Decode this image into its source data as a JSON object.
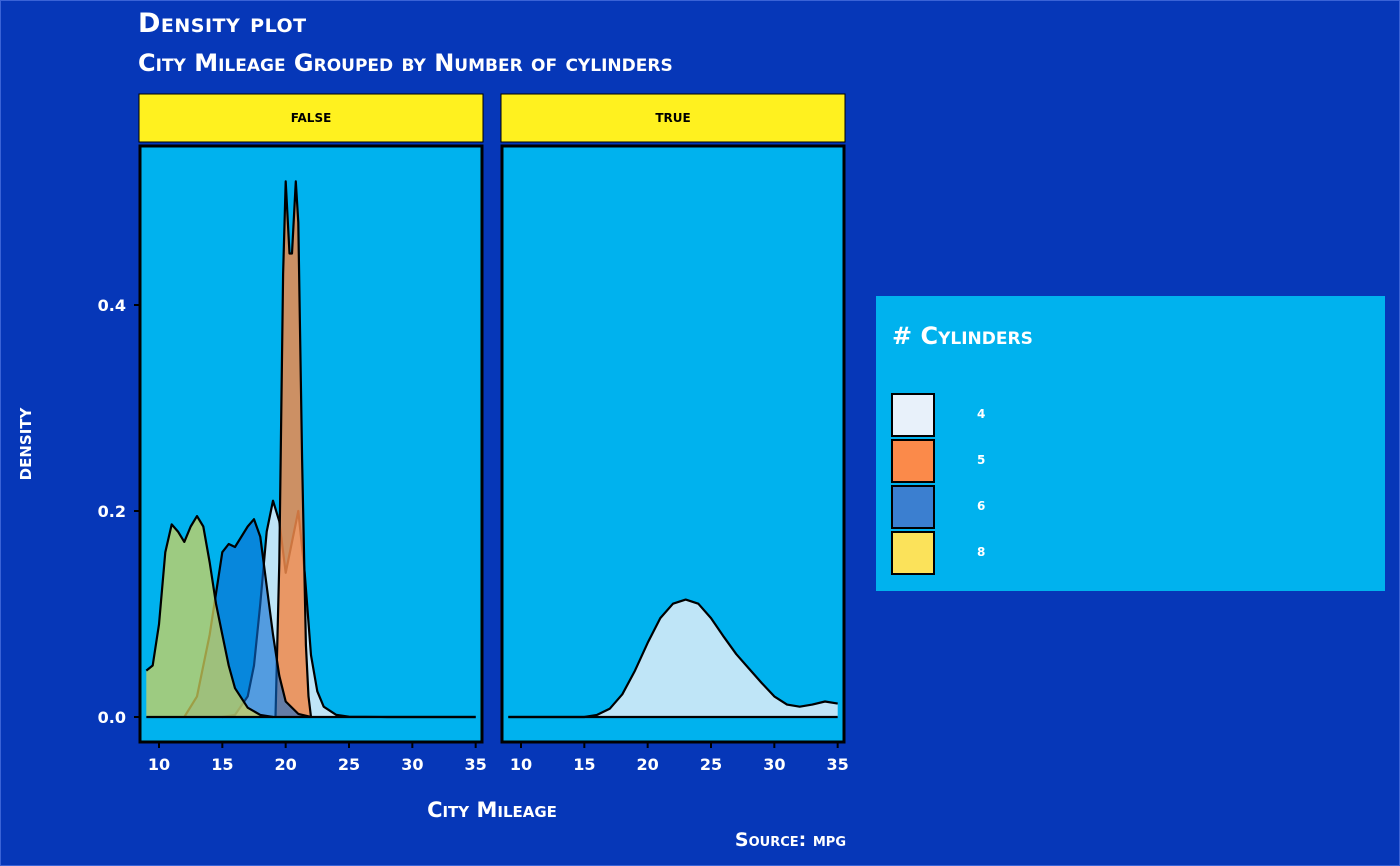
{
  "title": "Density plot",
  "subtitle": "City Mileage Grouped by Number of cylinders",
  "caption": "Source: mpg",
  "colors": {
    "background": "#0637b8",
    "panel": "#00b2ee",
    "strip": "#fff11f",
    "cyl_4": "#bfe5f7",
    "cyl_5": "#f08a4b",
    "cyl_6": "#0b6ad0",
    "cyl_8": "#d2d35c"
  },
  "chart_data": {
    "type": "area",
    "title": "Density plot",
    "subtitle": "City Mileage Grouped by Number of cylinders",
    "xlabel": "City Mileage",
    "ylabel": "density",
    "xlim": [
      8.5,
      35.5
    ],
    "ylim": [
      -0.03,
      0.55
    ],
    "x_ticks": [
      10,
      15,
      20,
      25,
      30,
      35
    ],
    "y_ticks": [
      0.0,
      0.2,
      0.4
    ],
    "y_tick_labels": [
      "0.0",
      "0.2",
      "0.4"
    ],
    "legend": {
      "title": "# Cylinders",
      "position": "right",
      "entries": [
        "4",
        "5",
        "6",
        "8"
      ]
    },
    "facets": [
      {
        "label": "FALSE",
        "series": [
          {
            "name": "4",
            "color": "#bfe5f7",
            "points": [
              [
                15,
                0
              ],
              [
                16,
                0.002
              ],
              [
                17,
                0.02
              ],
              [
                17.5,
                0.05
              ],
              [
                18,
                0.11
              ],
              [
                18.5,
                0.18
              ],
              [
                19,
                0.21
              ],
              [
                19.5,
                0.19
              ],
              [
                20,
                0.14
              ],
              [
                20.5,
                0.17
              ],
              [
                21,
                0.2
              ],
              [
                21.5,
                0.14
              ],
              [
                22,
                0.06
              ],
              [
                22.5,
                0.025
              ],
              [
                23,
                0.01
              ],
              [
                24,
                0.002
              ],
              [
                25,
                0.0003
              ],
              [
                28,
                0
              ],
              [
                35,
                0
              ]
            ]
          },
          {
            "name": "5",
            "color": "#f08a4b",
            "points": [
              [
                19.2,
                0
              ],
              [
                19.5,
                0.15
              ],
              [
                19.8,
                0.43
              ],
              [
                20,
                0.52
              ],
              [
                20.3,
                0.45
              ],
              [
                20.5,
                0.45
              ],
              [
                20.8,
                0.52
              ],
              [
                21,
                0.48
              ],
              [
                21.3,
                0.25
              ],
              [
                21.6,
                0.07
              ],
              [
                21.8,
                0.02
              ],
              [
                22,
                0
              ]
            ]
          },
          {
            "name": "6",
            "color": "#0b6ad0",
            "points": [
              [
                12,
                0
              ],
              [
                13,
                0.02
              ],
              [
                14,
                0.08
              ],
              [
                15,
                0.16
              ],
              [
                15.5,
                0.168
              ],
              [
                16,
                0.165
              ],
              [
                17,
                0.185
              ],
              [
                17.5,
                0.192
              ],
              [
                18,
                0.175
              ],
              [
                19,
                0.08
              ],
              [
                19.5,
                0.04
              ],
              [
                20,
                0.015
              ],
              [
                21,
                0.003
              ],
              [
                22,
                0
              ]
            ]
          },
          {
            "name": "8",
            "color": "#d2d35c",
            "points": [
              [
                9,
                0.045
              ],
              [
                9.5,
                0.05
              ],
              [
                10,
                0.09
              ],
              [
                10.5,
                0.16
              ],
              [
                11,
                0.187
              ],
              [
                11.5,
                0.18
              ],
              [
                12,
                0.17
              ],
              [
                12.5,
                0.185
              ],
              [
                13,
                0.195
              ],
              [
                13.5,
                0.185
              ],
              [
                14,
                0.15
              ],
              [
                14.5,
                0.11
              ],
              [
                15,
                0.08
              ],
              [
                15.5,
                0.05
              ],
              [
                16,
                0.028
              ],
              [
                17,
                0.009
              ],
              [
                18,
                0.002
              ],
              [
                19,
                0
              ]
            ]
          }
        ]
      },
      {
        "label": "TRUE",
        "series": [
          {
            "name": "4",
            "color": "#bfe5f7",
            "points": [
              [
                9,
                0
              ],
              [
                13,
                0
              ],
              [
                15,
                0
              ],
              [
                16,
                0.002
              ],
              [
                17,
                0.008
              ],
              [
                18,
                0.022
              ],
              [
                19,
                0.045
              ],
              [
                20,
                0.072
              ],
              [
                21,
                0.096
              ],
              [
                22,
                0.11
              ],
              [
                23,
                0.114
              ],
              [
                24,
                0.11
              ],
              [
                25,
                0.096
              ],
              [
                26,
                0.078
              ],
              [
                27,
                0.061
              ],
              [
                28,
                0.047
              ],
              [
                29,
                0.033
              ],
              [
                30,
                0.02
              ],
              [
                31,
                0.012
              ],
              [
                32,
                0.01
              ],
              [
                33,
                0.012
              ],
              [
                34,
                0.015
              ],
              [
                35,
                0.013
              ]
            ]
          }
        ]
      }
    ]
  }
}
